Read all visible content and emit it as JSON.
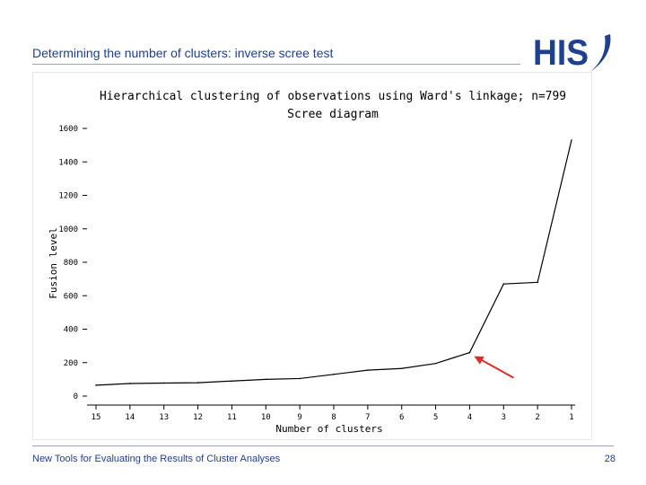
{
  "slide": {
    "title": "Determining the number of clusters: inverse scree test",
    "footer": "New Tools for Evaluating the Results of Cluster Analyses",
    "page_number": "28"
  },
  "logo": {
    "text": "HIS",
    "color": "#1f3f8f"
  },
  "colors": {
    "title": "#1f3f8f",
    "line": "#000000",
    "arrow": "#d9302a"
  },
  "chart_data": {
    "type": "line",
    "title": "Hierarchical clustering of observations using Ward's linkage; n=799",
    "subtitle": "Scree diagram",
    "xlabel": "Number of clusters",
    "ylabel": "Fusion level",
    "ylim": [
      0,
      1600
    ],
    "yticks": [
      {
        "value": 0,
        "label": "0"
      },
      {
        "value": 200,
        "label": "200"
      },
      {
        "value": 400,
        "label": "400"
      },
      {
        "value": 600,
        "label": "600"
      },
      {
        "value": 800,
        "label": "800"
      },
      {
        "value": 1000,
        "label": "1000"
      },
      {
        "value": 1200,
        "label": "1200"
      },
      {
        "value": 1400,
        "label": "1400"
      },
      {
        "value": 1600,
        "label": "1600"
      }
    ],
    "categories": [
      "15",
      "14",
      "13",
      "12",
      "11",
      "10",
      "9",
      "8",
      "7",
      "6",
      "5",
      "4",
      "3",
      "2",
      "1"
    ],
    "values": [
      65,
      75,
      78,
      80,
      90,
      100,
      105,
      130,
      155,
      165,
      195,
      260,
      670,
      680,
      1530
    ],
    "grid": false,
    "annotation": {
      "type": "arrow",
      "points_to_category": "4"
    }
  }
}
